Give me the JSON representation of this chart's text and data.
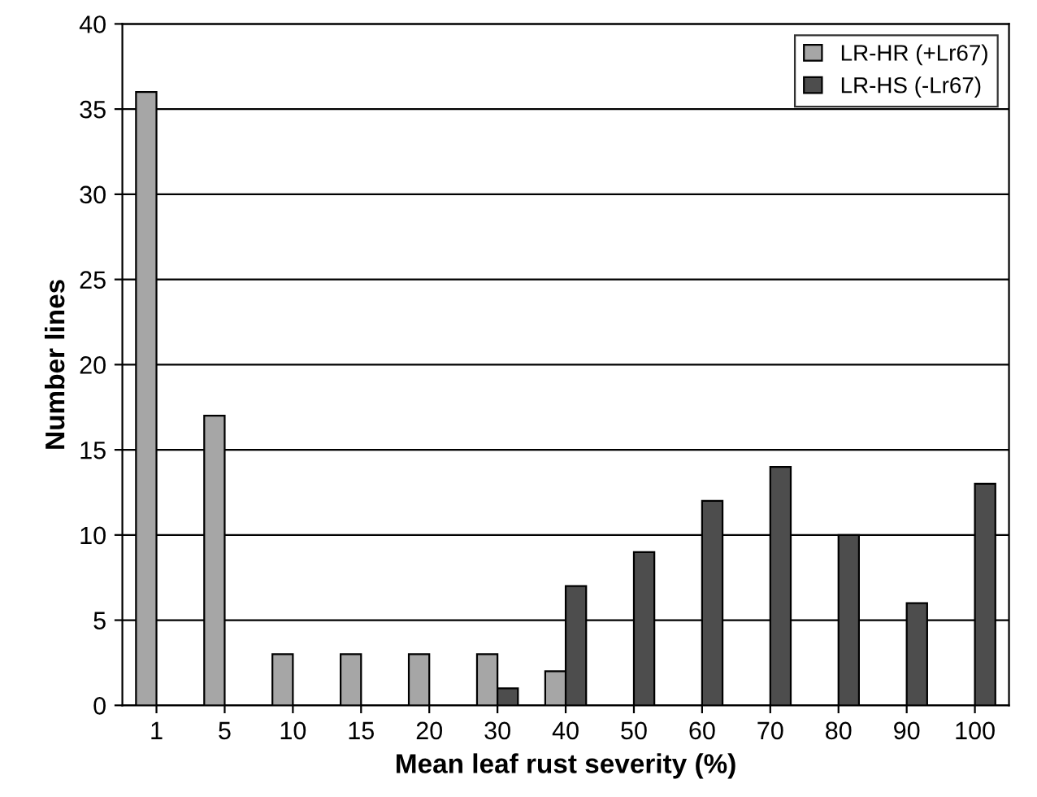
{
  "chart_data": {
    "type": "bar",
    "xlabel": "Mean leaf rust severity (%)",
    "ylabel": "Number lines",
    "categories": [
      "1",
      "5",
      "10",
      "15",
      "20",
      "30",
      "40",
      "50",
      "60",
      "70",
      "80",
      "90",
      "100"
    ],
    "series": [
      {
        "name": "LR-HR (+Lr67)",
        "color": "#a6a6a6",
        "values": [
          36,
          17,
          3,
          3,
          3,
          3,
          2,
          null,
          null,
          null,
          null,
          null,
          null
        ]
      },
      {
        "name": "LR-HS (-Lr67)",
        "color": "#4d4d4d",
        "values": [
          null,
          null,
          null,
          null,
          null,
          1,
          7,
          9,
          12,
          14,
          10,
          6,
          13
        ]
      }
    ],
    "ylim": [
      0,
      40
    ],
    "yticks": [
      0,
      5,
      10,
      15,
      20,
      25,
      30,
      35,
      40
    ],
    "grid": "y",
    "legend": "top right"
  }
}
